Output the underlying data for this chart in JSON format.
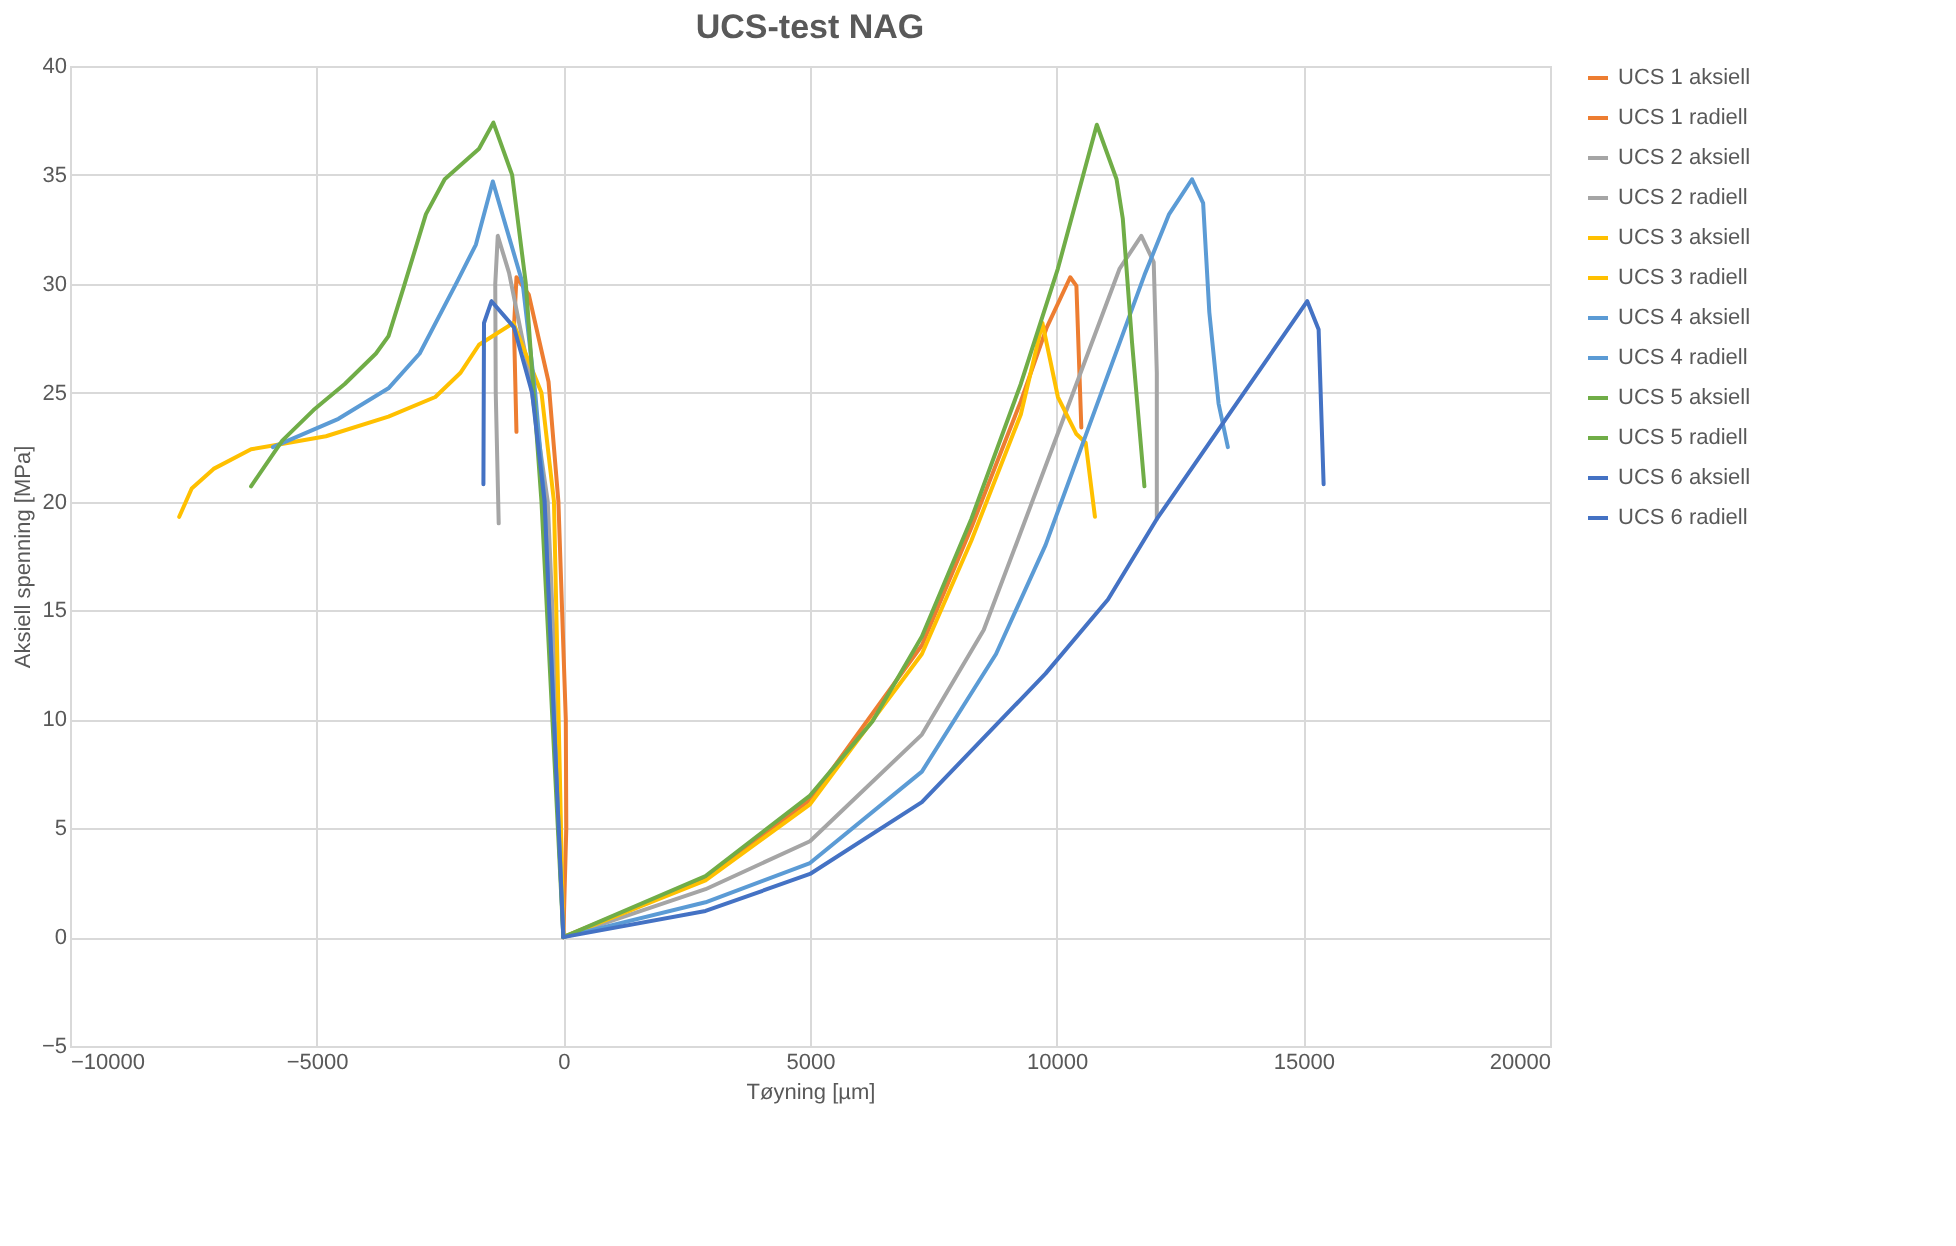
{
  "chart_data": {
    "type": "line",
    "title": "UCS-test NAG",
    "xlabel": "Tøyning [µm]",
    "ylabel": "Aksiell spenning [MPa]",
    "xlim": [
      -10000,
      20000
    ],
    "xticks": [
      -10000,
      -5000,
      0,
      5000,
      10000,
      15000,
      20000
    ],
    "ylim": [
      -5,
      40
    ],
    "yticks": [
      -5,
      0,
      5,
      10,
      15,
      20,
      25,
      30,
      35,
      40
    ],
    "grid": true,
    "legend": "right",
    "marker": "none",
    "line_style": "solid",
    "series": [
      {
        "name": "UCS 1 aksiell",
        "color": "#ed7d31",
        "x": [
          0,
          2882,
          5000,
          7268,
          8270,
          9273,
          9800,
          10275,
          10400,
          10500
        ],
        "values": [
          0,
          2.7,
          6.3,
          13.4,
          18.8,
          24.6,
          28.0,
          30.3,
          29.9,
          23.4
        ]
      },
      {
        "name": "UCS 1 radiell",
        "color": "#ed7d31",
        "x": [
          0,
          60,
          50,
          -100,
          -300,
          -500,
          -700,
          -950,
          -1000,
          -950
        ],
        "values": [
          0,
          5,
          10,
          20,
          25.5,
          27.5,
          29.5,
          30.3,
          28,
          23.2
        ]
      },
      {
        "name": "UCS 2 aksiell",
        "color": "#a5a5a5",
        "x": [
          0,
          2882,
          5000,
          7268,
          8521,
          9273,
          10400,
          11277,
          11716,
          11967,
          12030,
          12030
        ],
        "values": [
          0,
          2.2,
          4.4,
          9.3,
          14.1,
          18.6,
          25.4,
          30.7,
          32.2,
          31.0,
          25.9,
          19.2
        ]
      },
      {
        "name": "UCS 2 radiell",
        "color": "#a5a5a5",
        "x": [
          0,
          -127,
          -316,
          -700,
          -1100,
          -1329,
          -1380,
          -1370,
          -1310
        ],
        "values": [
          0,
          10,
          20,
          26,
          30.5,
          32.2,
          30,
          25,
          19.0
        ]
      },
      {
        "name": "UCS 3 aksiell",
        "color": "#ffc000",
        "x": [
          0,
          2882,
          5000,
          7268,
          8270,
          9273,
          9711,
          10025,
          10400,
          10588,
          10776
        ],
        "values": [
          0,
          2.6,
          6.1,
          13.0,
          18.2,
          24.0,
          28.2,
          24.8,
          23.1,
          22.7,
          19.3
        ]
      },
      {
        "name": "UCS 3 radiell",
        "color": "#ffc000",
        "x": [
          0,
          -190,
          -443,
          -1013,
          -1709,
          -2089,
          -2595,
          -3545,
          -4811,
          -5824,
          -6330,
          -7090,
          -7533,
          -7786
        ],
        "values": [
          0,
          20,
          25,
          28.2,
          27.2,
          25.9,
          24.8,
          23.9,
          23.0,
          22.6,
          22.4,
          21.5,
          20.6,
          19.3
        ]
      },
      {
        "name": "UCS 4 aksiell",
        "color": "#5b9bd5",
        "x": [
          0,
          2882,
          5000,
          7268,
          8771,
          9774,
          10776,
          11779,
          12280,
          12744,
          12969,
          13094,
          13282,
          13470
        ],
        "values": [
          0,
          1.6,
          3.4,
          7.6,
          13.0,
          18.0,
          24.2,
          30.4,
          33.2,
          34.8,
          33.7,
          28.7,
          24.5,
          22.5
        ]
      },
      {
        "name": "UCS 4 radiell",
        "color": "#5b9bd5",
        "x": [
          0,
          -380,
          -570,
          -823,
          -1430,
          -1772,
          -2152,
          -2912,
          -3545,
          -4558,
          -5887
        ],
        "values": [
          0,
          20,
          25,
          30,
          34.7,
          31.8,
          30.1,
          26.8,
          25.2,
          23.8,
          22.5
        ]
      },
      {
        "name": "UCS 5 aksiell",
        "color": "#70ad47",
        "x": [
          0,
          2882,
          5000,
          6265,
          7268,
          8270,
          9273,
          10025,
          10814,
          11214,
          11340,
          11528,
          11779
        ],
        "values": [
          0,
          2.8,
          6.5,
          9.9,
          13.8,
          19.2,
          25.4,
          30.7,
          37.3,
          34.8,
          33.0,
          27.3,
          20.7
        ]
      },
      {
        "name": "UCS 5 radiell",
        "color": "#70ad47",
        "x": [
          0,
          -443,
          -760,
          -1038,
          -1418,
          -1709,
          -2405,
          -2785,
          -3228,
          -3544,
          -3798,
          -4431,
          -5064,
          -5697,
          -6330
        ],
        "values": [
          0,
          20,
          30,
          35,
          37.4,
          36.2,
          34.8,
          33.2,
          29.9,
          27.6,
          26.8,
          25.4,
          24.2,
          22.8,
          20.7
        ]
      },
      {
        "name": "UCS 6 aksiell",
        "color": "#4472c4",
        "x": [
          0,
          2882,
          5000,
          7268,
          9774,
          11040,
          12030,
          13553,
          15080,
          15310,
          15411
        ],
        "values": [
          0,
          1.2,
          2.9,
          6.2,
          12.1,
          15.5,
          19.2,
          24.2,
          29.2,
          27.9,
          20.8
        ]
      },
      {
        "name": "UCS 6 radiell",
        "color": "#4472c4",
        "x": [
          0,
          -380,
          -633,
          -1000,
          -1456,
          -1608,
          -1620
        ],
        "values": [
          0,
          20,
          25,
          28,
          29.2,
          28.2,
          20.8
        ]
      }
    ]
  }
}
